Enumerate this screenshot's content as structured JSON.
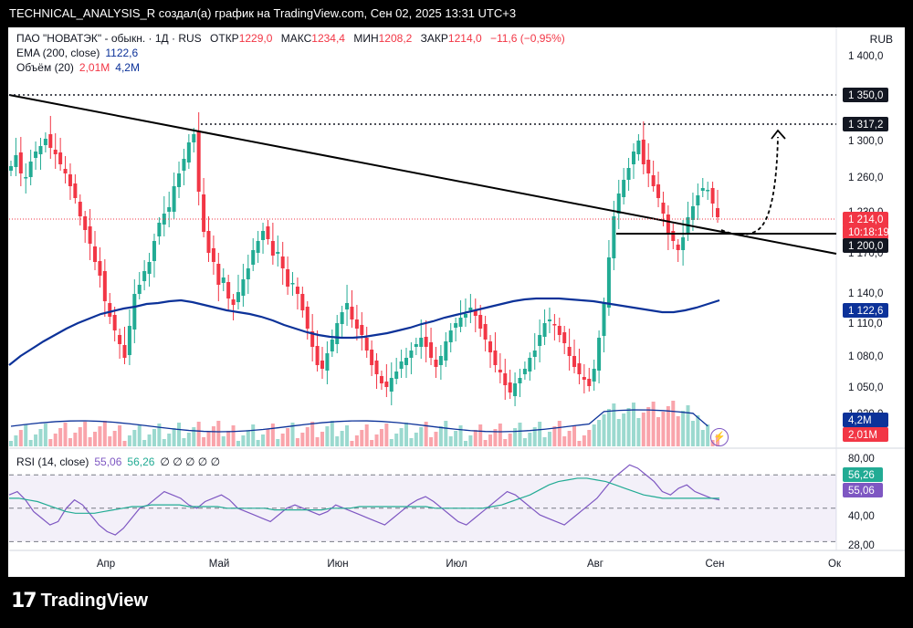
{
  "header": {
    "attribution": "TECHNICAL_ANALYSIS_R создал(а) график на TradingView.com, Сен 02, 2025 13:31 UTC+3"
  },
  "legend": {
    "symbol": "ПАО \"НОВАТЭК\" - обыкн. · 1Д · RUS",
    "open_label": "ОТКР",
    "open": "1229,0",
    "high_label": "МАКС",
    "high": "1234,4",
    "low_label": "МИН",
    "low": "1208,2",
    "close_label": "ЗАКР",
    "close": "1214,0",
    "change": "−11,6 (−0,95%)",
    "ema_label": "EMA (200, close)",
    "ema_value": "1122,6",
    "vol_label": "Объём (20)",
    "vol_value": "2,01M",
    "vol_ma": "4,2M",
    "rsi_label": "RSI (14, close)",
    "rsi_value": "55,06",
    "rsi_ma": "56,26",
    "rsi_extra": "∅ ∅ ∅ ∅ ∅"
  },
  "currency": "RUB",
  "branding": "TradingView",
  "colors": {
    "up": "#22ab94",
    "down": "#f23645",
    "ema": "#0c3299",
    "rsi": "#7e57c2",
    "rsi_ma": "#22ab94",
    "tag": "#131722"
  },
  "chart_data": [
    {
      "type": "candlestick",
      "title": "ПАО \"НОВАТЭК\" - обыкн. · 1Д · RUS",
      "y_ticks": [
        "1 400,0",
        "1 300,0",
        "1 260,0",
        "1 230,0",
        "1 170,0",
        "1 140,0",
        "1 110,0",
        "1 080,0",
        "1 050,0",
        "1 020,0"
      ],
      "x_ticks": [
        "Апр",
        "Май",
        "Июн",
        "Июл",
        "Авг",
        "Сен",
        "Ок"
      ],
      "price_tags": [
        {
          "label": "1 350,0",
          "kind": "level"
        },
        {
          "label": "1 317,2",
          "kind": "level"
        },
        {
          "label": "1 214,0",
          "kind": "last"
        },
        {
          "label": "10:18:19",
          "kind": "countdown"
        },
        {
          "label": "1 200,0",
          "kind": "level"
        },
        {
          "label": "1 122,6",
          "kind": "ema"
        },
        {
          "label": "4,2M",
          "kind": "vol_ma"
        },
        {
          "label": "2,01M",
          "kind": "vol"
        }
      ],
      "close_series": [
        1270,
        1282,
        1262,
        1258,
        1275,
        1286,
        1292,
        1300,
        1290,
        1283,
        1272,
        1262,
        1248,
        1235,
        1215,
        1200,
        1185,
        1165,
        1150,
        1122,
        1105,
        1090,
        1075,
        1060,
        1095,
        1130,
        1140,
        1155,
        1165,
        1188,
        1208,
        1218,
        1225,
        1248,
        1262,
        1278,
        1296,
        1305,
        1242,
        1198,
        1175,
        1165,
        1140,
        1148,
        1125,
        1118,
        1132,
        1146,
        1158,
        1178,
        1188,
        1199,
        1190,
        1172,
        1176,
        1158,
        1138,
        1142,
        1130,
        1112,
        1092,
        1072,
        1052,
        1048,
        1065,
        1080,
        1098,
        1110,
        1120,
        1102,
        1092,
        1085,
        1068,
        1052,
        1042,
        1032,
        1028,
        1038,
        1045,
        1056,
        1060,
        1068,
        1075,
        1082,
        1072,
        1060,
        1050,
        1062,
        1078,
        1090,
        1098,
        1104,
        1108,
        1115,
        1106,
        1092,
        1080,
        1066,
        1052,
        1044,
        1030,
        1022,
        1032,
        1038,
        1048,
        1060,
        1068,
        1085,
        1098,
        1102,
        1096,
        1085,
        1076,
        1062,
        1050,
        1042,
        1036,
        1029,
        1048,
        1082,
        1120,
        1170,
        1215,
        1240,
        1255,
        1268,
        1286,
        1298,
        1272,
        1262,
        1248,
        1235,
        1218,
        1196,
        1188,
        1178,
        1192,
        1214,
        1226,
        1238,
        1246,
        1244,
        1229,
        1214
      ],
      "ema200_series": [
        1052,
        1062,
        1070,
        1078,
        1085,
        1092,
        1098,
        1103,
        1108,
        1111,
        1114,
        1116,
        1119,
        1120,
        1122,
        1123,
        1121,
        1118,
        1115,
        1112,
        1110,
        1108,
        1105,
        1101,
        1096,
        1092,
        1088,
        1085,
        1083,
        1082,
        1082,
        1083,
        1085,
        1087,
        1090,
        1093,
        1097,
        1100,
        1104,
        1107,
        1110,
        1113,
        1116,
        1119,
        1122,
        1124,
        1125,
        1125,
        1125,
        1124,
        1123,
        1122,
        1120,
        1118,
        1116,
        1114,
        1112,
        1110,
        1110,
        1112,
        1115,
        1119,
        1123
      ],
      "rsi_series": [
        58,
        60,
        55,
        48,
        44,
        40,
        42,
        50,
        55,
        52,
        46,
        40,
        36,
        34,
        38,
        44,
        50,
        52,
        56,
        60,
        58,
        56,
        52,
        50,
        54,
        56,
        58,
        55,
        50,
        48,
        46,
        44,
        42,
        46,
        50,
        52,
        50,
        48,
        46,
        48,
        52,
        50,
        48,
        46,
        44,
        42,
        40,
        44,
        48,
        52,
        55,
        57,
        54,
        50,
        46,
        42,
        40,
        44,
        48,
        52,
        56,
        60,
        58,
        54,
        50,
        46,
        44,
        42,
        40,
        44,
        48,
        52,
        56,
        62,
        68,
        72,
        76,
        74,
        70,
        66,
        60,
        58,
        62,
        64,
        60,
        58,
        56,
        55
      ],
      "rsi_ma_series": [
        56,
        56,
        55,
        54,
        52,
        50,
        48,
        47,
        47,
        47,
        48,
        49,
        50,
        51,
        51,
        52,
        52,
        52,
        52,
        51,
        51,
        51,
        51,
        50,
        50,
        50,
        50,
        50,
        49,
        49,
        49,
        49,
        49,
        49,
        50,
        50,
        50,
        51,
        51,
        51,
        51,
        51,
        51,
        51,
        51,
        50,
        50,
        50,
        50,
        50,
        50,
        51,
        52,
        54,
        56,
        58,
        61,
        64,
        66,
        67,
        68,
        68,
        67,
        66,
        64,
        62,
        60,
        58,
        57,
        56,
        56,
        56,
        56,
        56,
        56,
        56
      ],
      "volume_ma": "4,2M"
    },
    {
      "type": "line",
      "title": "RSI (14, close)",
      "y_ticks": [
        "80,00",
        "40,00",
        "28,00"
      ],
      "bands": [
        70,
        50,
        30
      ],
      "values_last": {
        "rsi": 55.06,
        "rsi_ma": 56.26
      }
    }
  ]
}
